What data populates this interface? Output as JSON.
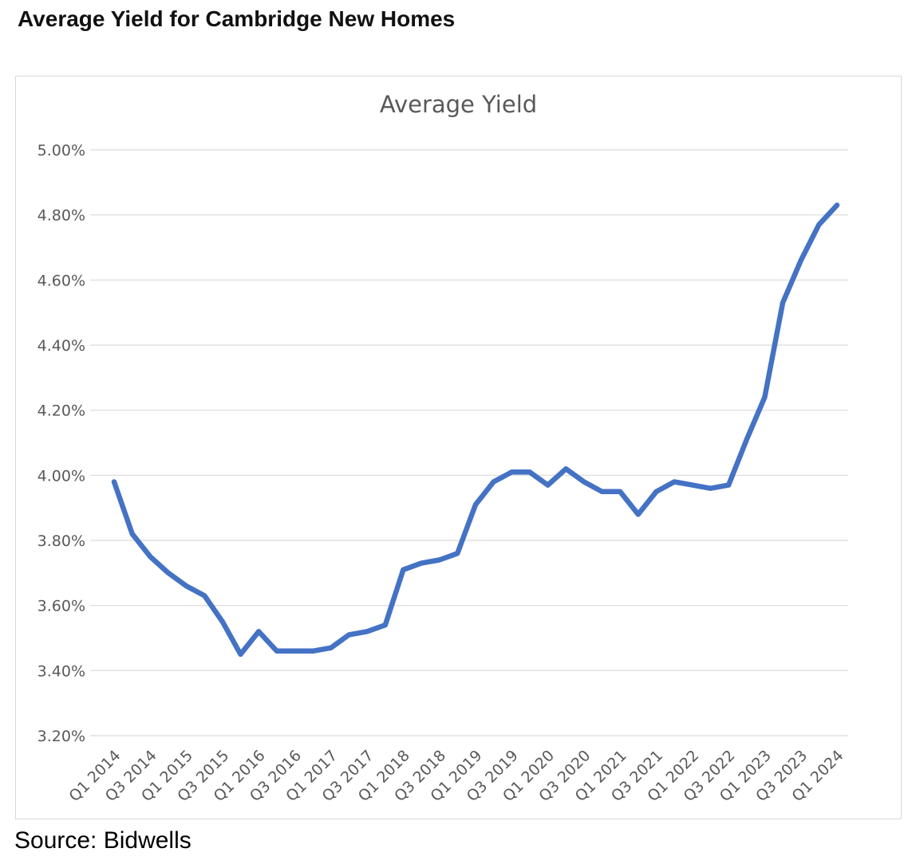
{
  "page": {
    "title": "Average Yield for Cambridge New Homes",
    "source": "Source: Bidwells"
  },
  "chart_data": {
    "type": "line",
    "title": "Average Yield",
    "xlabel": "",
    "ylabel": "",
    "legend": "none",
    "grid": true,
    "ylim": [
      3.2,
      5.0
    ],
    "y_tick_step": 0.2,
    "y_tick_labels": [
      "5.00%",
      "4.80%",
      "4.60%",
      "4.40%",
      "4.20%",
      "4.00%",
      "3.80%",
      "3.60%",
      "3.40%",
      "3.20%"
    ],
    "x_tick_labels": [
      "Q1 2014",
      "Q3 2014",
      "Q1 2015",
      "Q3 2015",
      "Q1 2016",
      "Q3 2016",
      "Q1 2017",
      "Q3 2017",
      "Q1 2018",
      "Q3 2018",
      "Q1 2019",
      "Q3 2019",
      "Q1 2020",
      "Q3 2020",
      "Q1 2021",
      "Q3 2021",
      "Q1 2022",
      "Q3 2022",
      "Q1 2023",
      "Q3 2023",
      "Q1 2024"
    ],
    "categories": [
      "Q1 2014",
      "Q2 2014",
      "Q3 2014",
      "Q4 2014",
      "Q1 2015",
      "Q2 2015",
      "Q3 2015",
      "Q4 2015",
      "Q1 2016",
      "Q2 2016",
      "Q3 2016",
      "Q4 2016",
      "Q1 2017",
      "Q2 2017",
      "Q3 2017",
      "Q4 2017",
      "Q1 2018",
      "Q2 2018",
      "Q3 2018",
      "Q4 2018",
      "Q1 2019",
      "Q2 2019",
      "Q3 2019",
      "Q4 2019",
      "Q1 2020",
      "Q2 2020",
      "Q3 2020",
      "Q4 2020",
      "Q1 2021",
      "Q2 2021",
      "Q3 2021",
      "Q4 2021",
      "Q1 2022",
      "Q2 2022",
      "Q3 2022",
      "Q4 2022",
      "Q1 2023",
      "Q2 2023",
      "Q3 2023",
      "Q4 2023",
      "Q1 2024"
    ],
    "values": [
      3.98,
      3.82,
      3.75,
      3.7,
      3.66,
      3.63,
      3.55,
      3.45,
      3.52,
      3.46,
      3.46,
      3.46,
      3.47,
      3.51,
      3.52,
      3.54,
      3.71,
      3.73,
      3.74,
      3.76,
      3.91,
      3.98,
      4.01,
      4.01,
      3.97,
      4.02,
      3.98,
      3.95,
      3.95,
      3.88,
      3.95,
      3.98,
      3.97,
      3.96,
      3.97,
      4.11,
      4.24,
      4.53,
      4.66,
      4.77,
      4.83
    ],
    "line_color": "#4472C4",
    "gridline_color": "#D9D9D9",
    "axis_text_color": "#595959",
    "title_color": "#595959"
  }
}
